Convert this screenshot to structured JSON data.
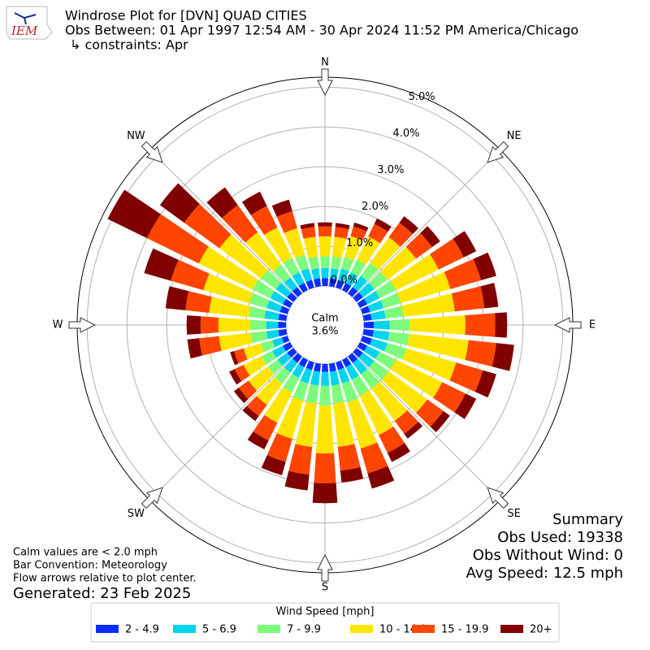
{
  "chart_data": {
    "type": "windrose",
    "title": "Windrose Plot for [DVN] QUAD CITIES",
    "subtitle": "Obs Between: 01 Apr 1997 12:54 AM - 30 Apr 2024 11:52 PM America/Chicago",
    "constraints": "↳ constraints: Apr",
    "logo": "IEM",
    "directions": [
      0,
      10,
      20,
      30,
      40,
      50,
      60,
      70,
      80,
      90,
      100,
      110,
      120,
      130,
      140,
      150,
      160,
      170,
      180,
      190,
      200,
      210,
      220,
      230,
      240,
      250,
      260,
      270,
      280,
      290,
      300,
      310,
      320,
      330,
      340,
      350
    ],
    "xticks": [
      {
        "value": 0,
        "label": "N"
      },
      {
        "value": 45,
        "label": "NE"
      },
      {
        "value": 90,
        "label": "E"
      },
      {
        "value": 135,
        "label": "SE"
      },
      {
        "value": 180,
        "label": "S"
      },
      {
        "value": 225,
        "label": "SW"
      },
      {
        "value": 270,
        "label": "W"
      },
      {
        "value": 315,
        "label": "NW"
      }
    ],
    "ylim": [
      0,
      5.25
    ],
    "yticks": [
      {
        "value": 0,
        "label": "0.0%"
      },
      {
        "value": 1,
        "label": "1.0%"
      },
      {
        "value": 2,
        "label": "2.0%"
      },
      {
        "value": 3,
        "label": "3.0%"
      },
      {
        "value": 4,
        "label": "4.0%"
      },
      {
        "value": 5,
        "label": "5.0%"
      }
    ],
    "grid": true,
    "calm": {
      "label": "Calm",
      "value": 3.6,
      "value_label": "3.6%"
    },
    "legend_title": "Wind Speed [mph]",
    "series": [
      {
        "name": "2 - 4.9",
        "color": "#0a2dff",
        "values": [
          0.2,
          0.2,
          0.2,
          0.2,
          0.2,
          0.2,
          0.2,
          0.2,
          0.2,
          0.25,
          0.25,
          0.25,
          0.2,
          0.2,
          0.2,
          0.2,
          0.2,
          0.2,
          0.2,
          0.2,
          0.2,
          0.2,
          0.2,
          0.2,
          0.2,
          0.15,
          0.2,
          0.2,
          0.2,
          0.2,
          0.2,
          0.2,
          0.2,
          0.2,
          0.2,
          0.2
        ]
      },
      {
        "name": "5 - 6.9",
        "color": "#00d4f0",
        "values": [
          0.25,
          0.25,
          0.3,
          0.3,
          0.35,
          0.35,
          0.35,
          0.35,
          0.35,
          0.4,
          0.4,
          0.4,
          0.35,
          0.35,
          0.35,
          0.35,
          0.35,
          0.35,
          0.35,
          0.35,
          0.35,
          0.3,
          0.3,
          0.3,
          0.3,
          0.25,
          0.3,
          0.3,
          0.35,
          0.35,
          0.35,
          0.35,
          0.3,
          0.3,
          0.3,
          0.25
        ]
      },
      {
        "name": "7 - 9.9",
        "color": "#7dfb7d",
        "values": [
          0.3,
          0.3,
          0.3,
          0.35,
          0.4,
          0.4,
          0.45,
          0.45,
          0.45,
          0.5,
          0.5,
          0.5,
          0.45,
          0.45,
          0.45,
          0.45,
          0.5,
          0.45,
          0.5,
          0.45,
          0.45,
          0.4,
          0.35,
          0.3,
          0.3,
          0.3,
          0.4,
          0.4,
          0.4,
          0.45,
          0.5,
          0.45,
          0.4,
          0.4,
          0.35,
          0.3
        ]
      },
      {
        "name": "10 - 14.9",
        "color": "#ffe500",
        "values": [
          0.5,
          0.5,
          0.55,
          0.65,
          0.8,
          0.9,
          1.2,
          1.3,
          1.3,
          1.4,
          1.5,
          1.3,
          1.3,
          1.2,
          1.0,
          1.1,
          1.2,
          1.1,
          1.2,
          1.1,
          1.0,
          0.85,
          0.65,
          0.6,
          0.5,
          0.45,
          0.8,
          0.8,
          1.0,
          1.2,
          1.5,
          1.3,
          1.0,
          0.85,
          0.7,
          0.5
        ]
      },
      {
        "name": "15 - 19.9",
        "color": "#ff4500",
        "values": [
          0.25,
          0.25,
          0.25,
          0.35,
          0.45,
          0.5,
          0.7,
          0.8,
          0.75,
          0.75,
          0.7,
          0.7,
          0.65,
          0.5,
          0.4,
          0.5,
          0.65,
          0.6,
          0.75,
          0.7,
          0.6,
          0.5,
          0.35,
          0.3,
          0.25,
          0.25,
          0.5,
          0.45,
          0.6,
          0.85,
          1.45,
          1.1,
          0.85,
          0.6,
          0.45,
          0.25
        ]
      },
      {
        "name": "20+",
        "color": "#800000",
        "values": [
          0.1,
          0.1,
          0.1,
          0.15,
          0.2,
          0.25,
          0.35,
          0.4,
          0.35,
          0.3,
          0.45,
          0.35,
          0.3,
          0.2,
          0.15,
          0.25,
          0.4,
          0.3,
          0.5,
          0.4,
          0.35,
          0.25,
          0.15,
          0.15,
          0.15,
          0.1,
          0.3,
          0.35,
          0.5,
          0.7,
          1.1,
          0.75,
          0.55,
          0.4,
          0.3,
          0.1
        ]
      }
    ],
    "notes": [
      "Calm values are < 2.0 mph",
      "Bar Convention: Meteorology",
      "Flow arrows relative to plot center."
    ],
    "generated": "Generated: 23 Feb 2025",
    "summary": {
      "title": "Summary",
      "lines": [
        "Obs Used: 19338",
        "Obs Without Wind: 0",
        "Avg Speed: 12.5 mph"
      ]
    }
  }
}
